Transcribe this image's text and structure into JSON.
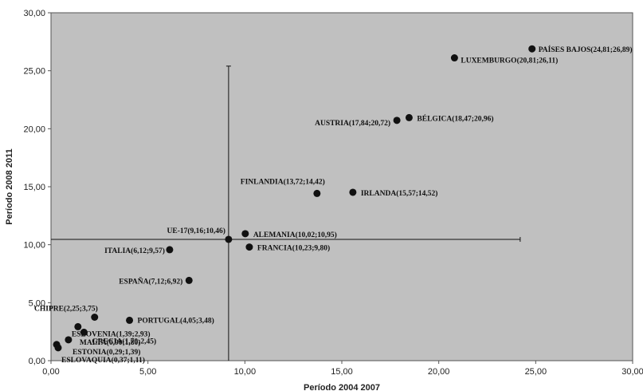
{
  "chart_data": {
    "type": "scatter",
    "title": "",
    "xlabel": "Período 2004 2007",
    "ylabel": "Período 2008 2011",
    "xlim": [
      0,
      30
    ],
    "ylim": [
      0,
      30
    ],
    "x_ticks": [
      "0,00",
      "5,00",
      "10,00",
      "15,00",
      "20,00",
      "25,00",
      "30,00"
    ],
    "y_ticks": [
      "0,00",
      "5,00",
      "10,00",
      "15,00",
      "20,00",
      "25,00",
      "30,00"
    ],
    "grid": false,
    "background": "#c0c0c0",
    "point_color": "#111111",
    "reference_lines": {
      "vertical": {
        "x": 9.16,
        "y_range": [
          0,
          25.4
        ]
      },
      "horizontal": {
        "y": 10.46,
        "x_range": [
          0,
          24.2
        ]
      }
    },
    "points": [
      {
        "label": "PAÍSES BAJOS(24,81;26,89)",
        "x": 24.81,
        "y": 26.89
      },
      {
        "label": "LUXEMBURGO(20,81;26,11)",
        "x": 20.81,
        "y": 26.11
      },
      {
        "label": "BÉLGICA(18,47;20,96)",
        "x": 18.47,
        "y": 20.96
      },
      {
        "label": "AUSTRIA(17,84;20,72)",
        "x": 17.84,
        "y": 20.72
      },
      {
        "label": "FINLANDIA(13,72;14,42)",
        "x": 13.72,
        "y": 14.42
      },
      {
        "label": "IRLANDA(15,57;14,52)",
        "x": 15.57,
        "y": 14.52
      },
      {
        "label": "UE-17(9,16;10,46)",
        "x": 9.16,
        "y": 10.46
      },
      {
        "label": "ALEMANIA(10,02;10,95)",
        "x": 10.02,
        "y": 10.95
      },
      {
        "label": "FRANCIA(10,23;9,80)",
        "x": 10.23,
        "y": 9.8
      },
      {
        "label": "ITALIA(6,12;9,57)",
        "x": 6.12,
        "y": 9.57
      },
      {
        "label": "ESPAÑA(7,12;6,92)",
        "x": 7.12,
        "y": 6.92
      },
      {
        "label": "CHIPRE(2,25;3,75)",
        "x": 2.25,
        "y": 3.75
      },
      {
        "label": "PORTUGAL(4,05;3,48)",
        "x": 4.05,
        "y": 3.48
      },
      {
        "label": "ESLOVENIA(1,39;2,93)",
        "x": 1.39,
        "y": 2.93
      },
      {
        "label": "GRECIA(1,70;2,45)",
        "x": 1.7,
        "y": 2.45
      },
      {
        "label": "MALTA(0,90;1,80)",
        "x": 0.9,
        "y": 1.8
      },
      {
        "label": "ESTONIA(0,29;1,39)",
        "x": 0.29,
        "y": 1.39
      },
      {
        "label": "ESLOVAQUIA(0,37;1,11)",
        "x": 0.37,
        "y": 1.11
      }
    ]
  }
}
